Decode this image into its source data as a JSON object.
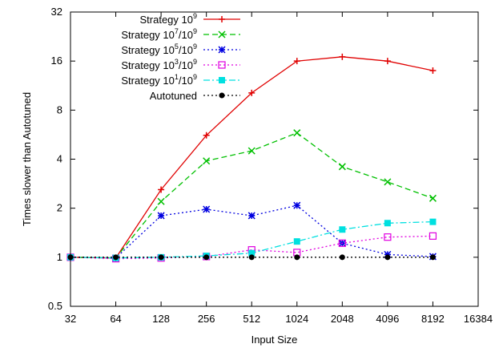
{
  "chart_data": {
    "type": "line",
    "xlabel": "Input Size",
    "ylabel": "Times slower than Autotuned",
    "x_scale": "log2",
    "y_scale": "log2",
    "xlim": [
      32,
      16384
    ],
    "ylim": [
      0.5,
      32
    ],
    "x_ticks": [
      "32",
      "64",
      "128",
      "256",
      "512",
      "1024",
      "2048",
      "4096",
      "8192",
      "16384"
    ],
    "y_ticks": [
      "0.5",
      "1",
      "2",
      "4",
      "8",
      "16",
      "32"
    ],
    "grid": false,
    "legend_position": "top-left",
    "x": [
      32,
      64,
      128,
      256,
      512,
      1024,
      2048,
      4096,
      8192
    ],
    "series": [
      {
        "name": "Strategy 10^9",
        "label_base": "Strategy 10",
        "label_sup": "9",
        "label_rest": "",
        "color": "#e00000",
        "dash": "solid",
        "marker": "plus",
        "values": [
          1.0,
          0.99,
          2.6,
          5.6,
          10.2,
          16.0,
          17.0,
          16.0,
          14.0
        ]
      },
      {
        "name": "Strategy 10^7/10^9",
        "label_base": "Strategy 10",
        "label_sup": "7",
        "label_rest": "/10",
        "label_sup2": "9",
        "color": "#00c000",
        "dash": "dashed",
        "marker": "x",
        "values": [
          1.0,
          0.99,
          2.2,
          3.9,
          4.5,
          5.8,
          3.6,
          2.9,
          2.3
        ]
      },
      {
        "name": "Strategy 10^5/10^9",
        "label_base": "Strategy 10",
        "label_sup": "5",
        "label_rest": "/10",
        "label_sup2": "9",
        "color": "#0000e0",
        "dash": "dotted",
        "marker": "star",
        "values": [
          1.0,
          0.99,
          1.8,
          1.97,
          1.8,
          2.08,
          1.22,
          1.04,
          1.01
        ]
      },
      {
        "name": "Strategy 10^3/10^9",
        "label_base": "Strategy 10",
        "label_sup": "3",
        "label_rest": "/10",
        "label_sup2": "9",
        "color": "#e000e0",
        "dash": "dotted",
        "marker": "square",
        "values": [
          1.0,
          0.98,
          0.99,
          1.01,
          1.11,
          1.07,
          1.22,
          1.33,
          1.35
        ]
      },
      {
        "name": "Strategy 10^1/10^9",
        "label_base": "Strategy 10",
        "label_sup": "1",
        "label_rest": "/10",
        "label_sup2": "9",
        "color": "#00e0e0",
        "dash": "dashdot",
        "marker": "filled-square",
        "values": [
          1.0,
          0.99,
          1.0,
          1.02,
          1.06,
          1.25,
          1.48,
          1.62,
          1.65
        ]
      },
      {
        "name": "Autotuned",
        "label_base": "Autotuned",
        "label_sup": "",
        "label_rest": "",
        "color": "#000000",
        "dash": "dotted",
        "marker": "dot",
        "values": [
          1.0,
          1.0,
          1.0,
          1.0,
          1.0,
          1.0,
          1.0,
          1.0,
          1.0
        ]
      }
    ]
  }
}
